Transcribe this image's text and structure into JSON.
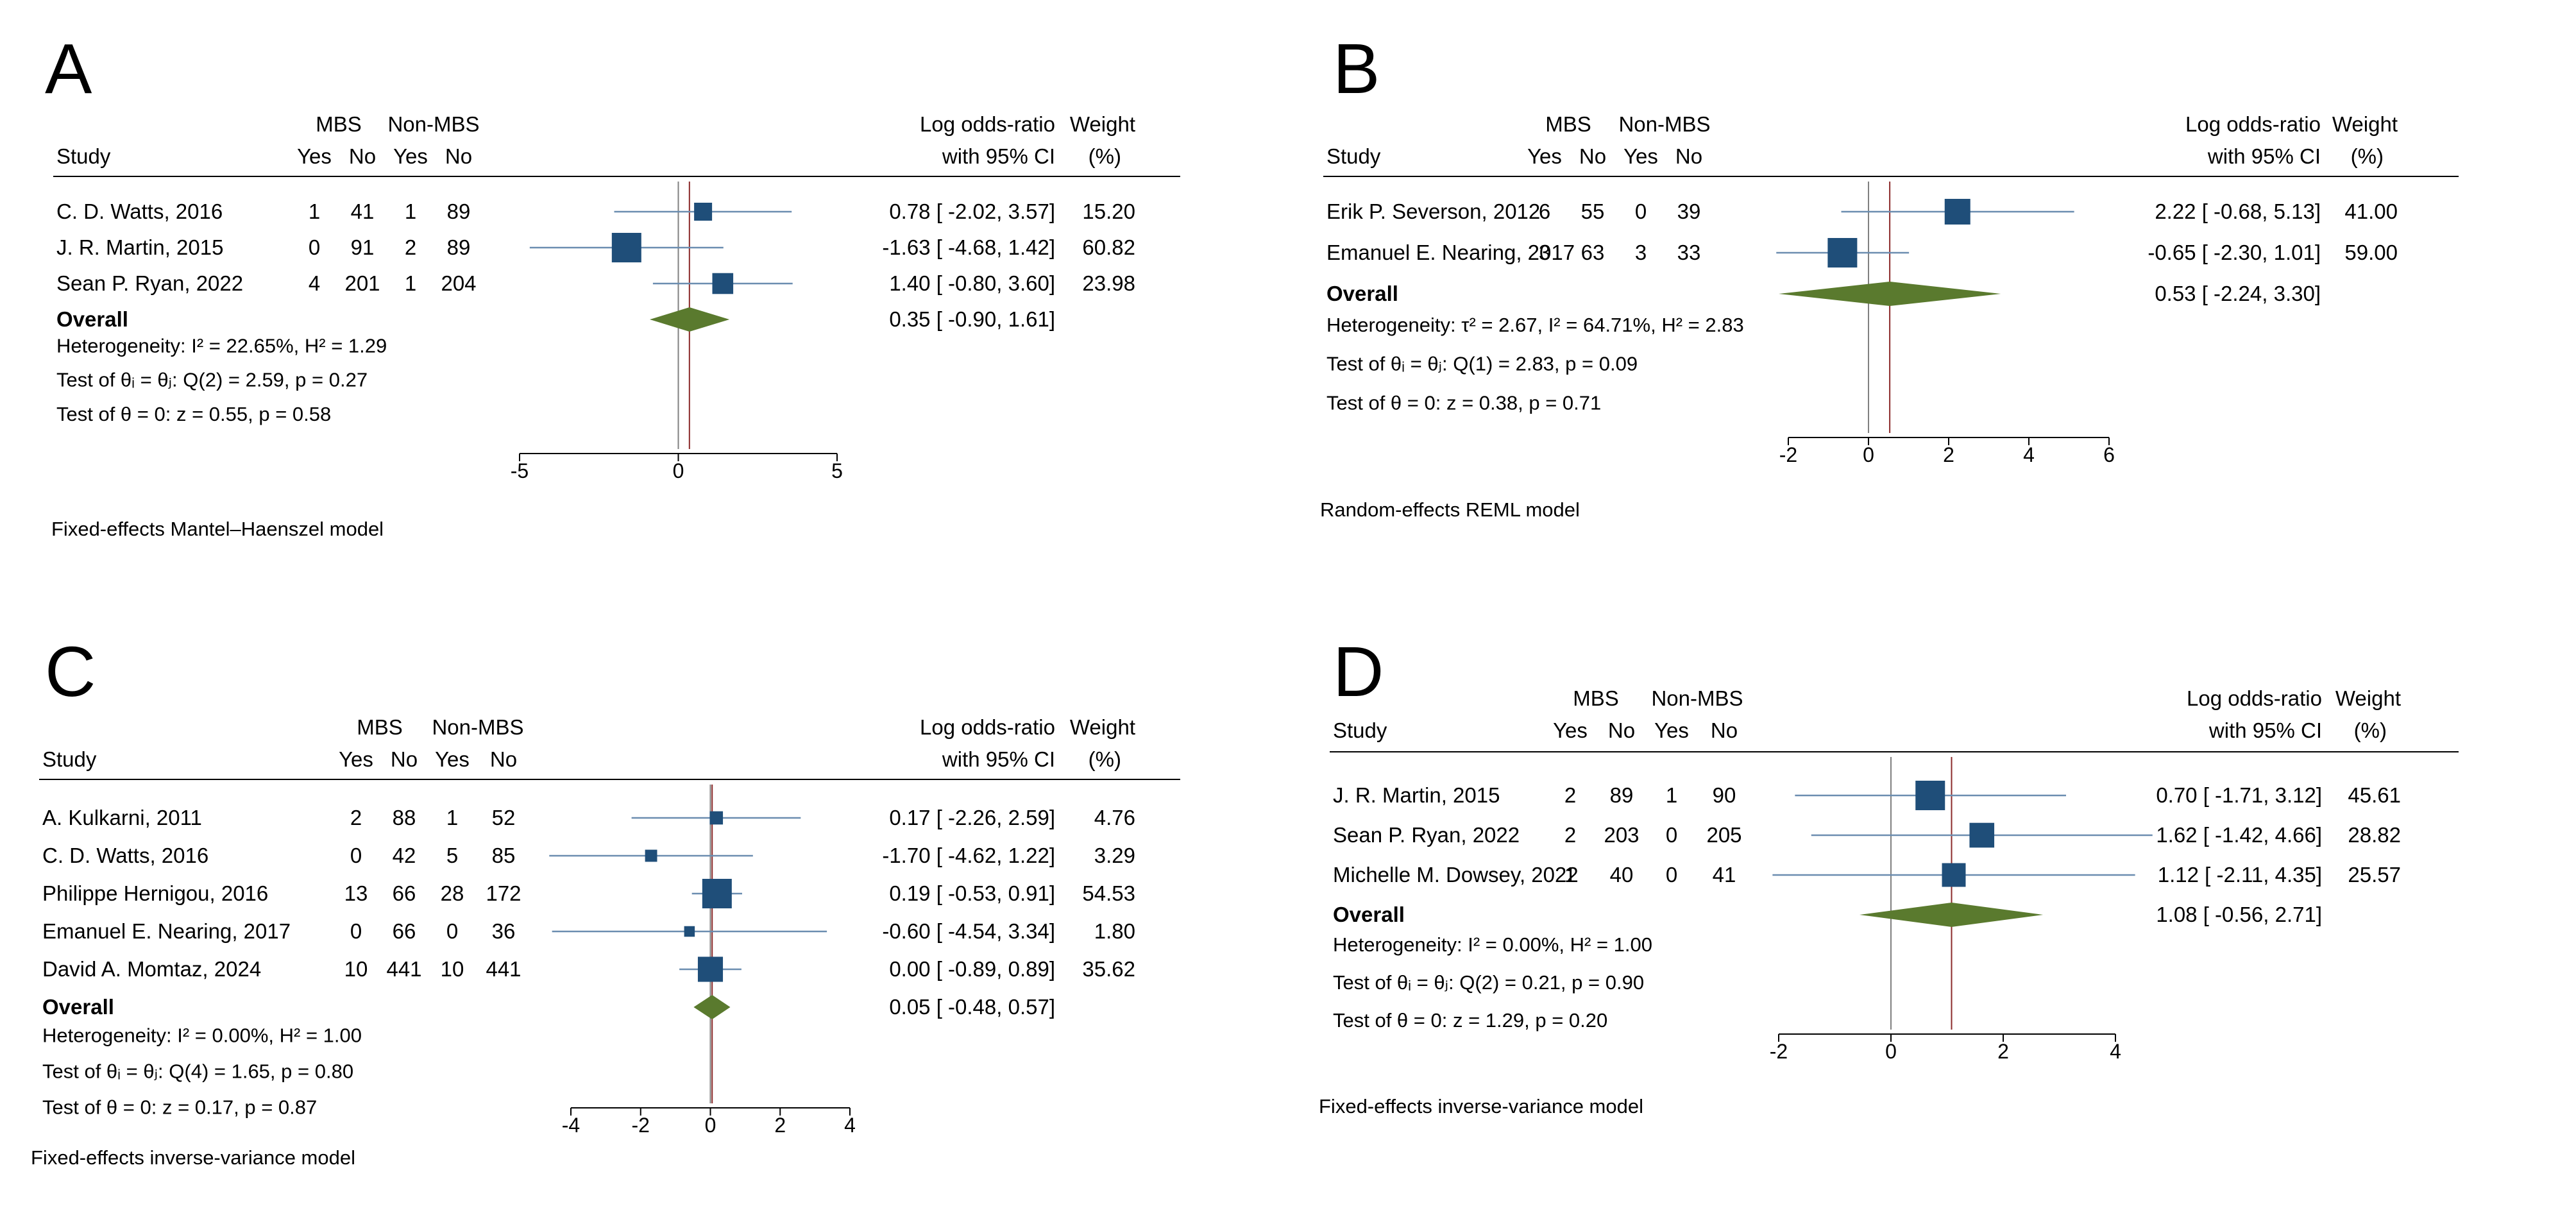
{
  "colors": {
    "square": "#1f4e79",
    "diamond": "#5a7a2e",
    "line": "#6b8db0",
    "ref": "#808080",
    "overall_line": "#8b2a2a",
    "rule": "#000000"
  },
  "headers": {
    "study": "Study",
    "mbs": "MBS",
    "nonmbs": "Non-MBS",
    "yes": "Yes",
    "no": "No",
    "es1": "Log odds-ratio",
    "es2": "with 95% CI",
    "w1": "Weight",
    "w2": "(%)"
  },
  "chart_data": [
    {
      "type": "forest",
      "letter": "A",
      "xlim": [
        -5,
        5
      ],
      "ticks": [
        "-5",
        "0",
        "5"
      ],
      "tick_values": [
        -5,
        0,
        5
      ],
      "studies": [
        {
          "name": "C. D. Watts, 2016",
          "yes1": "1",
          "no1": "41",
          "yes2": "1",
          "no2": "89",
          "est": 0.78,
          "lo": -2.02,
          "hi": 3.57,
          "ci": "0.78 [ -2.02,  3.57]",
          "weight": "15.20",
          "w": 15.2
        },
        {
          "name": "J. R. Martin, 2015",
          "yes1": "0",
          "no1": "91",
          "yes2": "2",
          "no2": "89",
          "est": -1.63,
          "lo": -4.68,
          "hi": 1.42,
          "ci": "-1.63 [ -4.68,  1.42]",
          "weight": "60.82",
          "w": 60.82
        },
        {
          "name": "Sean P. Ryan, 2022",
          "yes1": "4",
          "no1": "201",
          "yes2": "1",
          "no2": "204",
          "est": 1.4,
          "lo": -0.8,
          "hi": 3.6,
          "ci": "1.40 [ -0.80,  3.60]",
          "weight": "23.98",
          "w": 23.98
        }
      ],
      "overall": {
        "label": "Overall",
        "est": 0.35,
        "lo": -0.9,
        "hi": 1.61,
        "ci": "0.35 [ -0.90,  1.61]"
      },
      "stats": [
        "Heterogeneity: I² = 22.65%, H² = 1.29",
        "Test of θᵢ = θⱼ: Q(2) = 2.59, p = 0.27",
        "Test of θ = 0: z = 0.55, p = 0.58"
      ],
      "model": "Fixed-effects Mantel–Haenszel model"
    },
    {
      "type": "forest",
      "letter": "B",
      "xlim": [
        -2,
        6
      ],
      "ticks": [
        "-2",
        "0",
        "2",
        "4",
        "6"
      ],
      "tick_values": [
        -2,
        0,
        2,
        4,
        6
      ],
      "studies": [
        {
          "name": "Erik P. Severson, 2012",
          "yes1": "6",
          "no1": "55",
          "yes2": "0",
          "no2": "39",
          "est": 2.22,
          "lo": -0.68,
          "hi": 5.13,
          "ci": "2.22 [ -0.68,  5.13]",
          "weight": "41.00",
          "w": 41.0
        },
        {
          "name": "Emanuel E. Nearing, 2017",
          "yes1": "3",
          "no1": "63",
          "yes2": "3",
          "no2": "33",
          "est": -0.65,
          "lo": -2.3,
          "hi": 1.01,
          "ci": "-0.65 [ -2.30,  1.01]",
          "weight": "59.00",
          "w": 59.0
        }
      ],
      "overall": {
        "label": "Overall",
        "est": 0.53,
        "lo": -2.24,
        "hi": 3.3,
        "ci": "0.53 [ -2.24,  3.30]"
      },
      "stats": [
        "Heterogeneity: τ² = 2.67, I² = 64.71%, H² = 2.83",
        "Test of θᵢ = θⱼ: Q(1) = 2.83, p = 0.09",
        "Test of θ = 0: z = 0.38, p = 0.71"
      ],
      "model": "Random-effects REML model"
    },
    {
      "type": "forest",
      "letter": "C",
      "xlim": [
        -4,
        4
      ],
      "ticks": [
        "-4",
        "-2",
        "0",
        "2",
        "4"
      ],
      "tick_values": [
        -4,
        -2,
        0,
        2,
        4
      ],
      "studies": [
        {
          "name": "A. Kulkarni, 2011",
          "yes1": "2",
          "no1": "88",
          "yes2": "1",
          "no2": "52",
          "est": 0.17,
          "lo": -2.26,
          "hi": 2.59,
          "ci": "0.17 [ -2.26,  2.59]",
          "weight": "4.76",
          "w": 4.76
        },
        {
          "name": "C. D. Watts, 2016",
          "yes1": "0",
          "no1": "42",
          "yes2": "5",
          "no2": "85",
          "est": -1.7,
          "lo": -4.62,
          "hi": 1.22,
          "ci": "-1.70 [ -4.62,  1.22]",
          "weight": "3.29",
          "w": 3.29
        },
        {
          "name": "Philippe Hernigou, 2016",
          "yes1": "13",
          "no1": "66",
          "yes2": "28",
          "no2": "172",
          "est": 0.19,
          "lo": -0.53,
          "hi": 0.91,
          "ci": "0.19 [ -0.53,  0.91]",
          "weight": "54.53",
          "w": 54.53
        },
        {
          "name": "Emanuel E. Nearing, 2017",
          "yes1": "0",
          "no1": "66",
          "yes2": "0",
          "no2": "36",
          "est": -0.6,
          "lo": -4.54,
          "hi": 3.34,
          "ci": "-0.60 [ -4.54,  3.34]",
          "weight": "1.80",
          "w": 1.8
        },
        {
          "name": "David A. Momtaz, 2024",
          "yes1": "10",
          "no1": "441",
          "yes2": "10",
          "no2": "441",
          "est": 0.0,
          "lo": -0.89,
          "hi": 0.89,
          "ci": "0.00 [ -0.89,  0.89]",
          "weight": "35.62",
          "w": 35.62
        }
      ],
      "overall": {
        "label": "Overall",
        "est": 0.05,
        "lo": -0.48,
        "hi": 0.57,
        "ci": "0.05 [ -0.48,  0.57]"
      },
      "stats": [
        "Heterogeneity: I² = 0.00%, H² = 1.00",
        "Test of θᵢ = θⱼ: Q(4) = 1.65, p = 0.80",
        "Test of θ = 0: z = 0.17, p = 0.87"
      ],
      "model": "Fixed-effects inverse-variance model"
    },
    {
      "type": "forest",
      "letter": "D",
      "xlim": [
        -2,
        4
      ],
      "ticks": [
        "-2",
        "0",
        "2",
        "4"
      ],
      "tick_values": [
        -2,
        0,
        2,
        4
      ],
      "studies": [
        {
          "name": "J. R. Martin, 2015",
          "yes1": "2",
          "no1": "89",
          "yes2": "1",
          "no2": "90",
          "est": 0.7,
          "lo": -1.71,
          "hi": 3.12,
          "ci": "0.70 [ -1.71,  3.12]",
          "weight": "45.61",
          "w": 45.61
        },
        {
          "name": "Sean P. Ryan, 2022",
          "yes1": "2",
          "no1": "203",
          "yes2": "0",
          "no2": "205",
          "est": 1.62,
          "lo": -1.42,
          "hi": 4.66,
          "ci": "1.62 [ -1.42,  4.66]",
          "weight": "28.82",
          "w": 28.82
        },
        {
          "name": "Michelle M. Dowsey, 2022",
          "yes1": "1",
          "no1": "40",
          "yes2": "0",
          "no2": "41",
          "est": 1.12,
          "lo": -2.11,
          "hi": 4.35,
          "ci": "1.12 [ -2.11,  4.35]",
          "weight": "25.57",
          "w": 25.57
        }
      ],
      "overall": {
        "label": "Overall",
        "est": 1.08,
        "lo": -0.56,
        "hi": 2.71,
        "ci": "1.08 [ -0.56,  2.71]"
      },
      "stats": [
        "Heterogeneity: I² = 0.00%, H² = 1.00",
        "Test of θᵢ = θⱼ: Q(2) = 0.21, p = 0.90",
        "Test of θ = 0: z = 1.29, p = 0.20"
      ],
      "model": "Fixed-effects inverse-variance model"
    }
  ]
}
